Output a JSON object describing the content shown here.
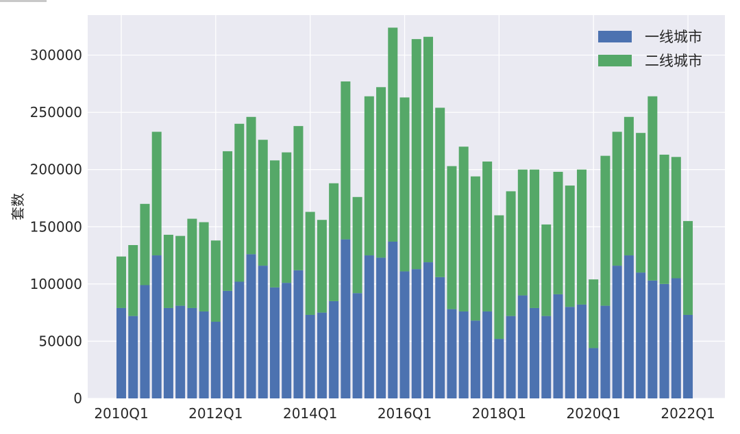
{
  "chart_data": {
    "type": "bar",
    "stacked": true,
    "ylabel": "套数",
    "xlabel": "",
    "ylim": [
      0,
      335000
    ],
    "yticks": [
      0,
      50000,
      100000,
      150000,
      200000,
      250000,
      300000
    ],
    "ytick_labels": [
      "0",
      "50000",
      "100000",
      "150000",
      "200000",
      "250000",
      "300000"
    ],
    "xticks": [
      "2010Q1",
      "2012Q1",
      "2014Q1",
      "2016Q1",
      "2018Q1",
      "2020Q1",
      "2022Q1"
    ],
    "categories": [
      "2010Q1",
      "2010Q2",
      "2010Q3",
      "2010Q4",
      "2011Q1",
      "2011Q2",
      "2011Q3",
      "2011Q4",
      "2012Q1",
      "2012Q2",
      "2012Q3",
      "2012Q4",
      "2013Q1",
      "2013Q2",
      "2013Q3",
      "2013Q4",
      "2014Q1",
      "2014Q2",
      "2014Q3",
      "2014Q4",
      "2015Q1",
      "2015Q2",
      "2015Q3",
      "2015Q4",
      "2016Q1",
      "2016Q2",
      "2016Q3",
      "2016Q4",
      "2017Q1",
      "2017Q2",
      "2017Q3",
      "2017Q4",
      "2018Q1",
      "2018Q2",
      "2018Q3",
      "2018Q4",
      "2019Q1",
      "2019Q2",
      "2019Q3",
      "2019Q4",
      "2020Q1",
      "2020Q2",
      "2020Q3",
      "2020Q4",
      "2021Q1",
      "2021Q2",
      "2021Q3",
      "2021Q4",
      "2022Q1"
    ],
    "series": [
      {
        "name": "一线城市",
        "color": "#4c72b0",
        "values": [
          79000,
          72000,
          99000,
          125000,
          79000,
          81000,
          79000,
          76000,
          67000,
          94000,
          102000,
          126000,
          116000,
          97000,
          101000,
          112000,
          73000,
          75000,
          85000,
          139000,
          92000,
          125000,
          123000,
          137000,
          111000,
          113000,
          119000,
          106000,
          78000,
          76000,
          68000,
          76000,
          52000,
          72000,
          90000,
          79000,
          72000,
          91000,
          80000,
          82000,
          44000,
          81000,
          116000,
          125000,
          110000,
          103000,
          100000,
          105000,
          73000
        ]
      },
      {
        "name": "二线城市",
        "color": "#55a868",
        "values": [
          45000,
          62000,
          71000,
          108000,
          64000,
          61000,
          78000,
          78000,
          71000,
          122000,
          138000,
          120000,
          110000,
          111000,
          114000,
          126000,
          90000,
          81000,
          103000,
          138000,
          84000,
          139000,
          149000,
          187000,
          152000,
          201000,
          197000,
          148000,
          125000,
          144000,
          126000,
          131000,
          108000,
          109000,
          110000,
          121000,
          80000,
          107000,
          106000,
          118000,
          60000,
          131000,
          117000,
          121000,
          122000,
          161000,
          113000,
          106000,
          82000
        ]
      }
    ],
    "legend": {
      "position": "top-right",
      "entries": [
        "一线城市",
        "二线城市"
      ]
    },
    "grid": true,
    "background": "#eaeaf2",
    "grid_color": "#ffffff"
  }
}
